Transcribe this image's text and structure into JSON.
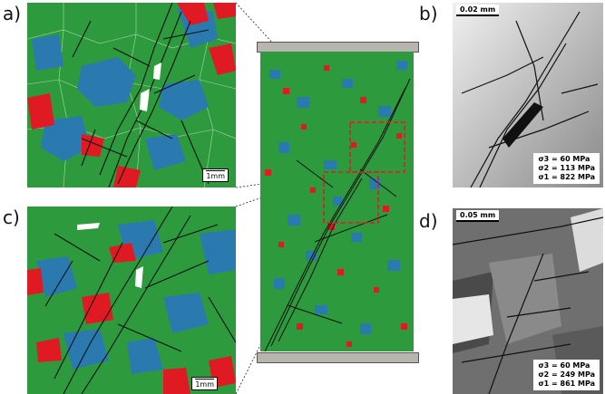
{
  "panels": {
    "a": {
      "label": "a)",
      "scale": "1mm"
    },
    "b": {
      "label": "b)",
      "scale": "0.02 mm",
      "stress": [
        "σ3 =   60 MPa",
        "σ2 = 113 MPa",
        "σ1 = 822 MPa"
      ]
    },
    "c": {
      "label": "c)",
      "scale": "1mm"
    },
    "d": {
      "label": "d)",
      "scale": "0.05 mm",
      "stress": [
        "σ3 =   60 MPa",
        "σ2 = 249 MPa",
        "σ1 = 861 MPa"
      ]
    }
  },
  "colors": {
    "grain_green": "#2e9a3e",
    "grain_blue": "#2a7ab0",
    "grain_red": "#e01a22",
    "crack": "#111111",
    "platen": "#b8b4ae"
  }
}
